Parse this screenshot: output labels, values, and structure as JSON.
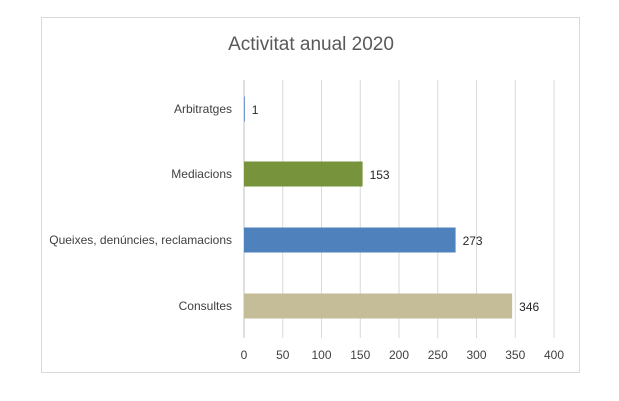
{
  "chart_data": {
    "type": "bar",
    "orientation": "horizontal",
    "title": "Activitat anual 2020",
    "categories": [
      "Arbitratges",
      "Mediacions",
      "Queixes, denúncies, reclamacions",
      "Consultes"
    ],
    "values": [
      1,
      153,
      273,
      346
    ],
    "colors": [
      "#4a7ebb",
      "#77933c",
      "#4f81bd",
      "#c4bd97"
    ],
    "xlim": [
      0,
      400
    ],
    "xticks": [
      0,
      50,
      100,
      150,
      200,
      250,
      300,
      350,
      400
    ],
    "grid": true,
    "legend": "none",
    "data_labels": true
  }
}
